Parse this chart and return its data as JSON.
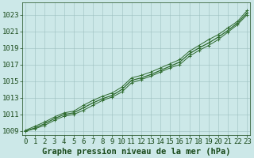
{
  "xlabel": "Graphe pression niveau de la mer (hPa)",
  "x": [
    0,
    1,
    2,
    3,
    4,
    5,
    6,
    7,
    8,
    9,
    10,
    11,
    12,
    13,
    14,
    15,
    16,
    17,
    18,
    19,
    20,
    21,
    22,
    23
  ],
  "y_main": [
    1009.0,
    1009.4,
    1009.9,
    1010.5,
    1011.0,
    1011.2,
    1011.8,
    1012.4,
    1012.9,
    1013.3,
    1014.0,
    1015.1,
    1015.4,
    1015.8,
    1016.3,
    1016.8,
    1017.3,
    1018.3,
    1019.0,
    1019.6,
    1020.3,
    1021.1,
    1022.0,
    1023.2
  ],
  "y_low": [
    1009.0,
    1009.3,
    1009.7,
    1010.3,
    1010.8,
    1011.0,
    1011.5,
    1012.1,
    1012.7,
    1013.1,
    1013.7,
    1014.8,
    1015.2,
    1015.6,
    1016.1,
    1016.6,
    1017.0,
    1018.0,
    1018.7,
    1019.3,
    1020.0,
    1020.9,
    1021.8,
    1023.0
  ],
  "y_high": [
    1009.1,
    1009.6,
    1010.1,
    1010.7,
    1011.2,
    1011.4,
    1012.1,
    1012.7,
    1013.2,
    1013.6,
    1014.3,
    1015.4,
    1015.7,
    1016.1,
    1016.6,
    1017.1,
    1017.6,
    1018.6,
    1019.3,
    1020.0,
    1020.6,
    1021.4,
    1022.2,
    1023.5
  ],
  "line_color": "#2d6a2d",
  "bg_color": "#cce8e8",
  "grid_color": "#9dbfbf",
  "ylim": [
    1008.5,
    1024.5
  ],
  "yticks": [
    1009,
    1011,
    1013,
    1015,
    1017,
    1019,
    1021,
    1023
  ],
  "xticks": [
    0,
    1,
    2,
    3,
    4,
    5,
    6,
    7,
    8,
    9,
    10,
    11,
    12,
    13,
    14,
    15,
    16,
    17,
    18,
    19,
    20,
    21,
    22,
    23
  ],
  "title_fontsize": 7.5,
  "tick_fontsize": 6.5,
  "title_color": "#1a4a1a",
  "tick_color": "#1a4a1a"
}
